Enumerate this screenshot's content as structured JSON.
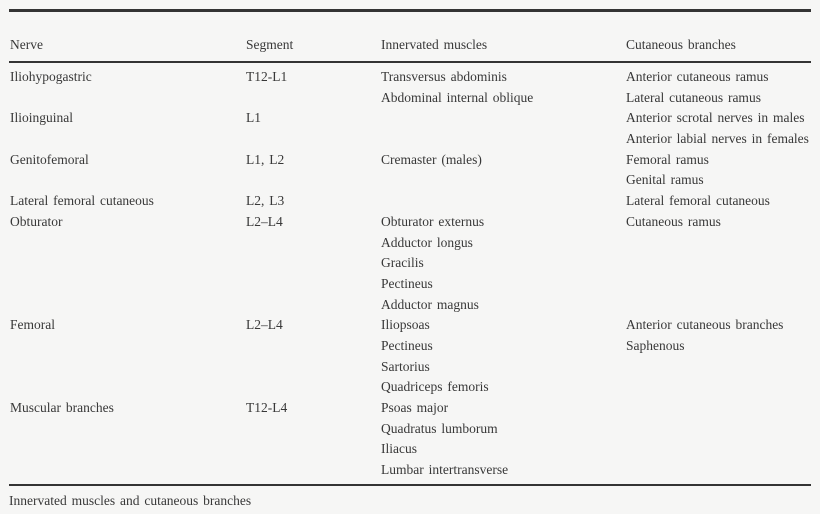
{
  "table": {
    "columns": [
      "Nerve",
      "Segment",
      "Innervated muscles",
      "Cutaneous branches"
    ],
    "rows": [
      {
        "nerve": "Iliohypogastric",
        "segment": "T12-L1",
        "muscles": [
          "Transversus abdominis",
          "Abdominal internal oblique"
        ],
        "cutaneous": [
          "Anterior cutaneous ramus",
          "Lateral cutaneous ramus"
        ]
      },
      {
        "nerve": "Ilioinguinal",
        "segment": "L1",
        "muscles": [],
        "cutaneous": [
          "Anterior scrotal nerves in males",
          "Anterior labial nerves in females"
        ]
      },
      {
        "nerve": "Genitofemoral",
        "segment": "L1, L2",
        "muscles": [
          "Cremaster (males)"
        ],
        "cutaneous": [
          "Femoral ramus",
          "Genital ramus"
        ]
      },
      {
        "nerve": "Lateral femoral cutaneous",
        "segment": "L2, L3",
        "muscles": [],
        "cutaneous": [
          "Lateral femoral cutaneous"
        ]
      },
      {
        "nerve": "Obturator",
        "segment": "L2–L4",
        "muscles": [
          "Obturator externus",
          "Adductor longus",
          "Gracilis",
          "Pectineus",
          "Adductor magnus"
        ],
        "cutaneous": [
          "Cutaneous ramus"
        ]
      },
      {
        "nerve": "Femoral",
        "segment": "L2–L4",
        "muscles": [
          "Iliopsoas",
          "Pectineus",
          "Sartorius",
          "Quadriceps femoris"
        ],
        "cutaneous": [
          "Anterior cutaneous branches",
          "Saphenous"
        ]
      },
      {
        "nerve": "Muscular branches",
        "segment": "T12-L4",
        "muscles": [
          "Psoas major",
          "Quadratus lumborum",
          "Iliacus",
          "Lumbar intertransverse"
        ],
        "cutaneous": []
      }
    ],
    "caption": "Innervated muscles and cutaneous branches"
  }
}
